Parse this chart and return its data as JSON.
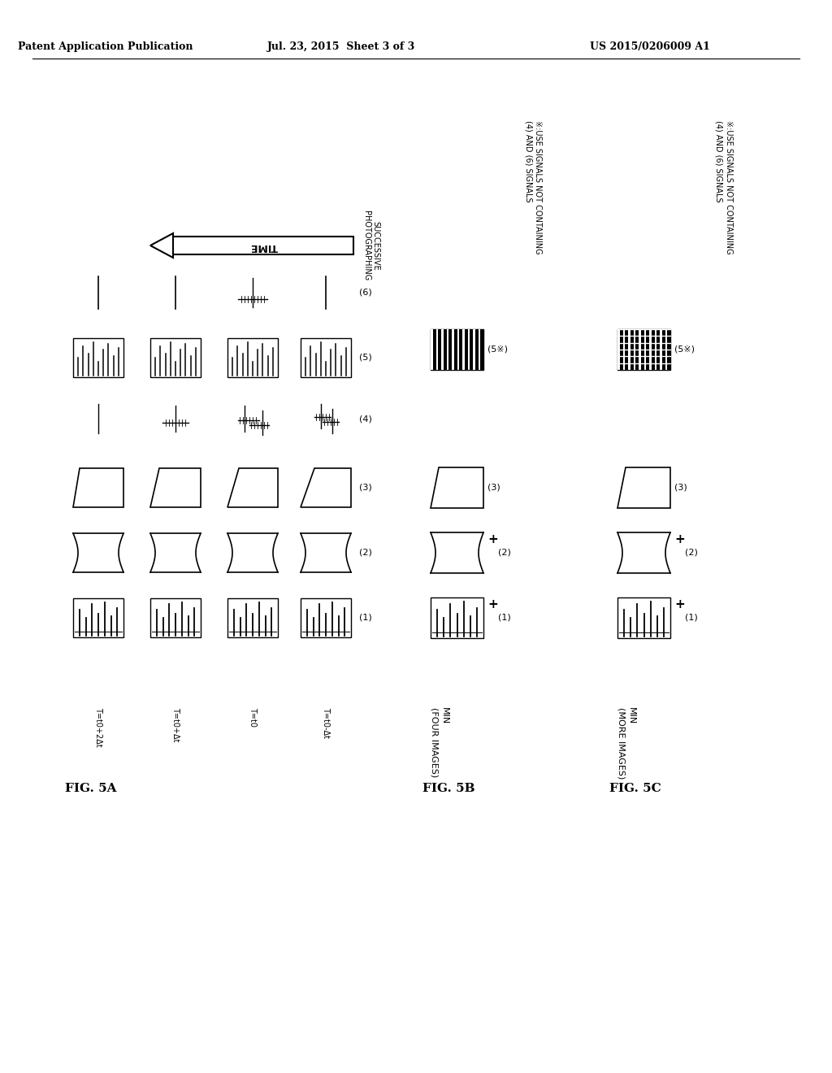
{
  "title_header": "Patent Application Publication",
  "date_header": "Jul. 23, 2015  Sheet 3 of 3",
  "patent_header": "US 2015/0206009 A1",
  "fig5a_label": "FIG. 5A",
  "fig5b_label": "FIG. 5B",
  "fig5c_label": "FIG. 5C",
  "time_arrow_text": "TIME",
  "successive_text": "SUCCESSIVE\nPHOTOGRAPHING",
  "time_labels": [
    "T=t0+2Δt",
    "T=t0+Δt",
    "T=t0",
    "T=t0-Δt"
  ],
  "note_5b": "※:USE SIGNALS NOT CONTAINING\n(4) AND (6) SIGNALS",
  "note_5c": "※:USE SIGNALS NOT CONTAINING\n(4) AND (6) SIGNALS",
  "min_four": "MIN\n(FOUR IMAGES)",
  "min_more": "MIN\n(MORE IMAGES)",
  "bg_color": "#ffffff",
  "line_color": "#000000"
}
